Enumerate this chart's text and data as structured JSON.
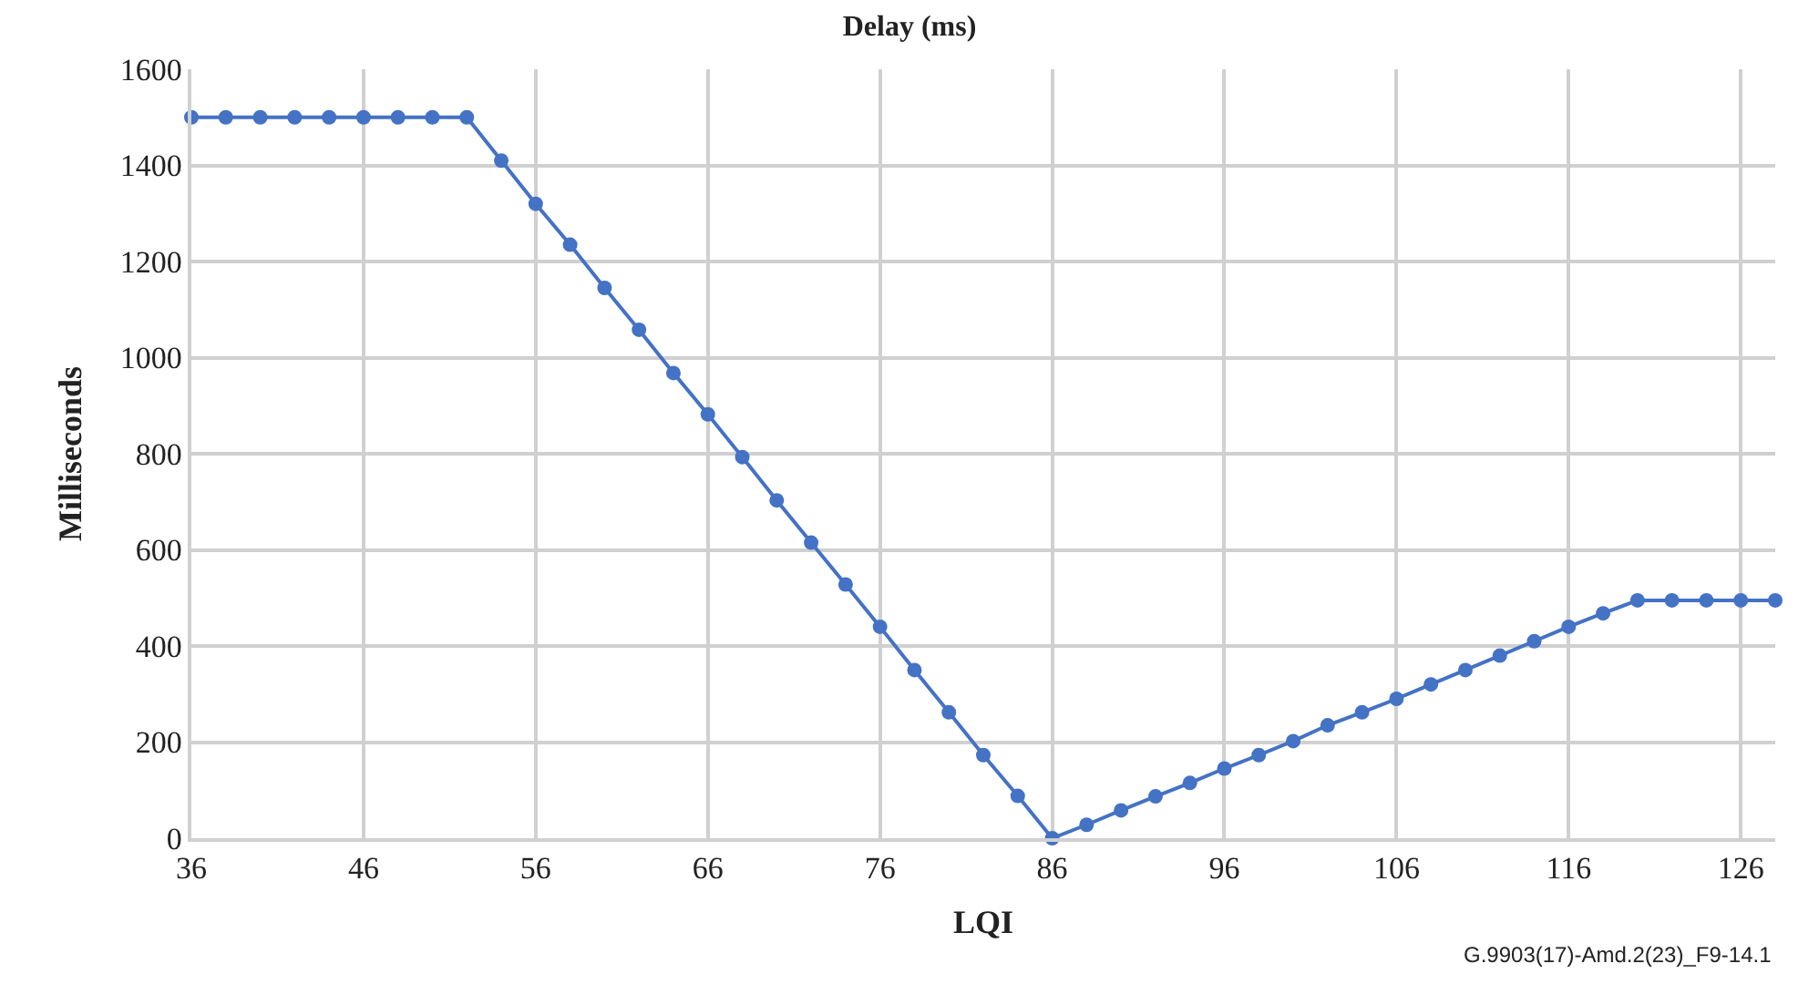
{
  "chart_data": {
    "type": "line",
    "title": "Delay (ms)",
    "xlabel": "LQI",
    "ylabel": "Milliseconds",
    "x": [
      36,
      38,
      40,
      42,
      44,
      46,
      48,
      50,
      52,
      54,
      56,
      58,
      60,
      62,
      64,
      66,
      68,
      70,
      72,
      74,
      76,
      78,
      80,
      82,
      84,
      86,
      88,
      90,
      92,
      94,
      96,
      98,
      100,
      102,
      104,
      106,
      108,
      110,
      112,
      114,
      116,
      118,
      120,
      122,
      124,
      126,
      128
    ],
    "series": [
      {
        "color": "#4472c4",
        "values": [
          1500,
          1500,
          1500,
          1500,
          1500,
          1500,
          1500,
          1500,
          1500,
          1410,
          1320,
          1235,
          1145,
          1058,
          968,
          882,
          793,
          703,
          615,
          528,
          440,
          350,
          262,
          173,
          88,
          0,
          28,
          58,
          87,
          115,
          145,
          173,
          202,
          235,
          262,
          290,
          320,
          350,
          380,
          410,
          440,
          468,
          495,
          495,
          495,
          495,
          495
        ]
      }
    ],
    "xlim": [
      36,
      128
    ],
    "xticks": [
      36,
      46,
      56,
      66,
      76,
      86,
      96,
      106,
      116,
      126
    ],
    "ylim": [
      0,
      1600
    ],
    "yticks": [
      0,
      200,
      400,
      600,
      800,
      1000,
      1200,
      1400,
      1600
    ],
    "grid": true,
    "marker": "circle",
    "line_style": "solid",
    "annotations": [
      "G.9903(17)-Amd.2(23)_F9-14.1"
    ]
  }
}
